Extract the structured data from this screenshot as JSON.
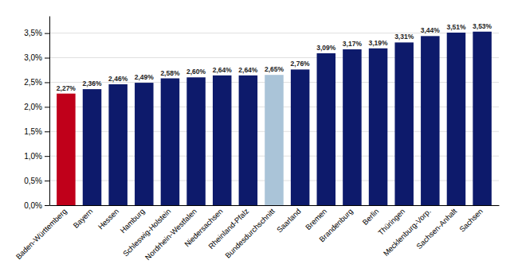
{
  "chart_data": {
    "type": "bar",
    "categories": [
      "Baden-Württemberg",
      "Bayern",
      "Hessen",
      "Hamburg",
      "Schleswig-Holstein",
      "Nordrhein-Westfalen",
      "Niedersachsen",
      "Rheinland-Pfalz",
      "Bundesdurchschnitt",
      "Saarland",
      "Bremen",
      "Brandenburg",
      "Berlin",
      "Thüringen",
      "Mecklenburg-Vorp.",
      "Sachsen-Anhalt",
      "Sachsen"
    ],
    "values": [
      2.27,
      2.36,
      2.46,
      2.49,
      2.58,
      2.6,
      2.64,
      2.64,
      2.65,
      2.76,
      3.09,
      3.17,
      3.19,
      3.31,
      3.44,
      3.51,
      3.53
    ],
    "value_labels": [
      "2,27%",
      "2,36%",
      "2,46%",
      "2,49%",
      "2,58%",
      "2,60%",
      "2,64%",
      "2,64%",
      "2,65%",
      "2,76%",
      "3,09%",
      "3,17%",
      "3,19%",
      "3,31%",
      "3,44%",
      "3,51%",
      "3,53%"
    ],
    "colors": [
      "#c0001a",
      "#0d1a6b",
      "#0d1a6b",
      "#0d1a6b",
      "#0d1a6b",
      "#0d1a6b",
      "#0d1a6b",
      "#0d1a6b",
      "#aac4d8",
      "#0d1a6b",
      "#0d1a6b",
      "#0d1a6b",
      "#0d1a6b",
      "#0d1a6b",
      "#0d1a6b",
      "#0d1a6b",
      "#0d1a6b"
    ],
    "ylim": [
      0,
      3.85
    ],
    "yticks": [
      {
        "value": 0.0,
        "label": "0,0%"
      },
      {
        "value": 0.5,
        "label": "0,5%"
      },
      {
        "value": 1.0,
        "label": "1,0%"
      },
      {
        "value": 1.5,
        "label": "1,5%"
      },
      {
        "value": 2.0,
        "label": "2,0%"
      },
      {
        "value": 2.5,
        "label": "2,5%"
      },
      {
        "value": 3.0,
        "label": "3,0%"
      },
      {
        "value": 3.5,
        "label": "3,5%"
      }
    ],
    "grid": true,
    "data_labels": true
  }
}
